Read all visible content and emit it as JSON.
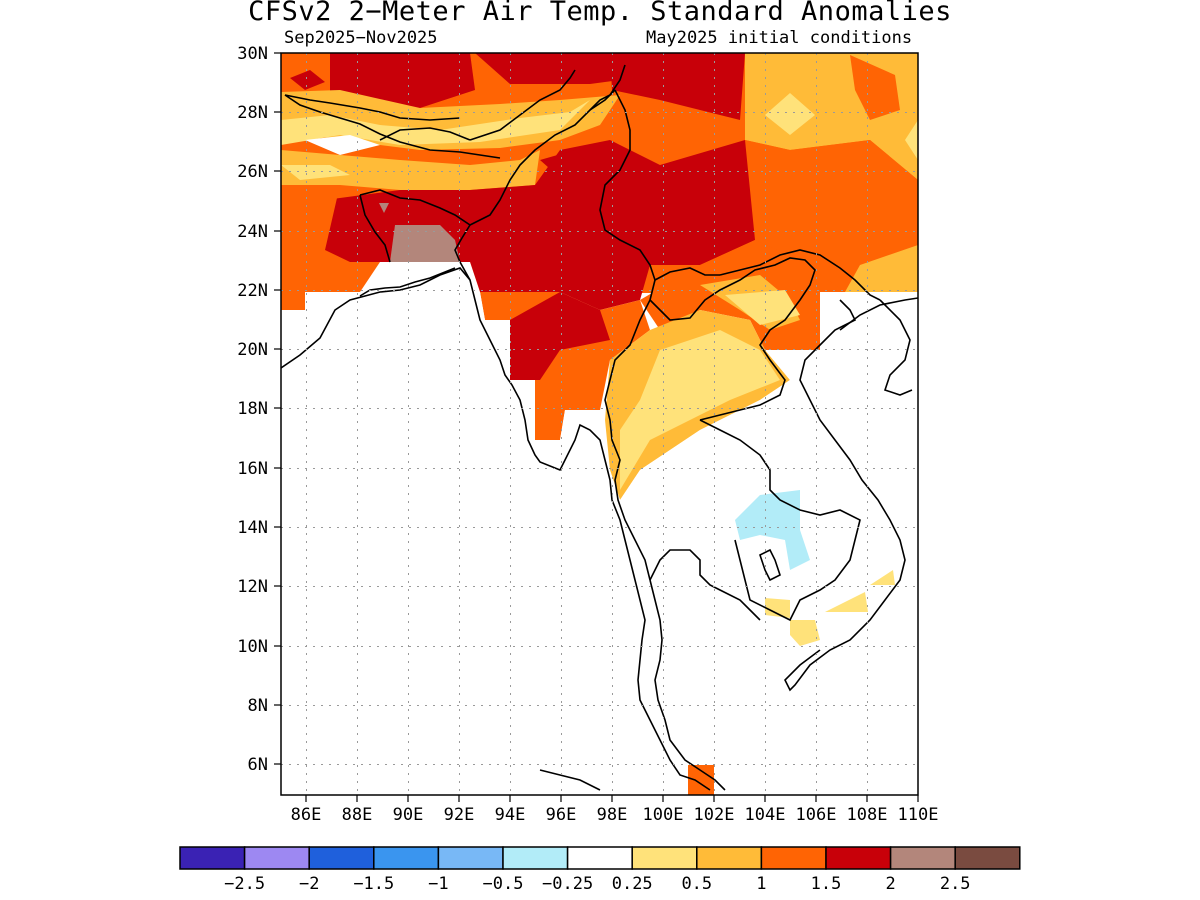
{
  "title": "CFSv2 2−Meter Air Temp. Standard Anomalies",
  "period": "Sep2025−Nov2025",
  "initial_conditions": "May2025 initial conditions",
  "map": {
    "region": "South/Southeast Asia",
    "lon_range": [
      85,
      110
    ],
    "lat_range": [
      5,
      30
    ],
    "lat_ticks": [
      "30N",
      "28N",
      "26N",
      "24N",
      "22N",
      "20N",
      "18N",
      "16N",
      "14N",
      "12N",
      "10N",
      "8N",
      "6N"
    ],
    "lon_ticks": [
      "86E",
      "88E",
      "90E",
      "92E",
      "94E",
      "96E",
      "98E",
      "100E",
      "102E",
      "104E",
      "106E",
      "108E",
      "110E"
    ],
    "grid": true
  },
  "legend": {
    "colors": [
      "#3a22b4",
      "#9d88f2",
      "#1f60dc",
      "#3a95ef",
      "#78b8f6",
      "#b2ecf8",
      "#ffffff",
      "#ffe27a",
      "#ffbb38",
      "#ff6404",
      "#c80009",
      "#b3867b",
      "#7a4b40"
    ],
    "labels": [
      "−2.5",
      "−2",
      "−1.5",
      "−1",
      "−0.5",
      "−0.25",
      "0.25",
      "0.5",
      "1",
      "1.5",
      "2",
      "2.5"
    ]
  },
  "colors": {
    "category_0_5_1": "#ffbb38",
    "category_1_1_5": "#ff6404",
    "category_1_5_2": "#c80009",
    "category_2_2_5": "#b3867b",
    "category_0_25_0_5": "#ffe27a",
    "category_neg_0_5_neg_0_25": "#b2ecf8"
  }
}
